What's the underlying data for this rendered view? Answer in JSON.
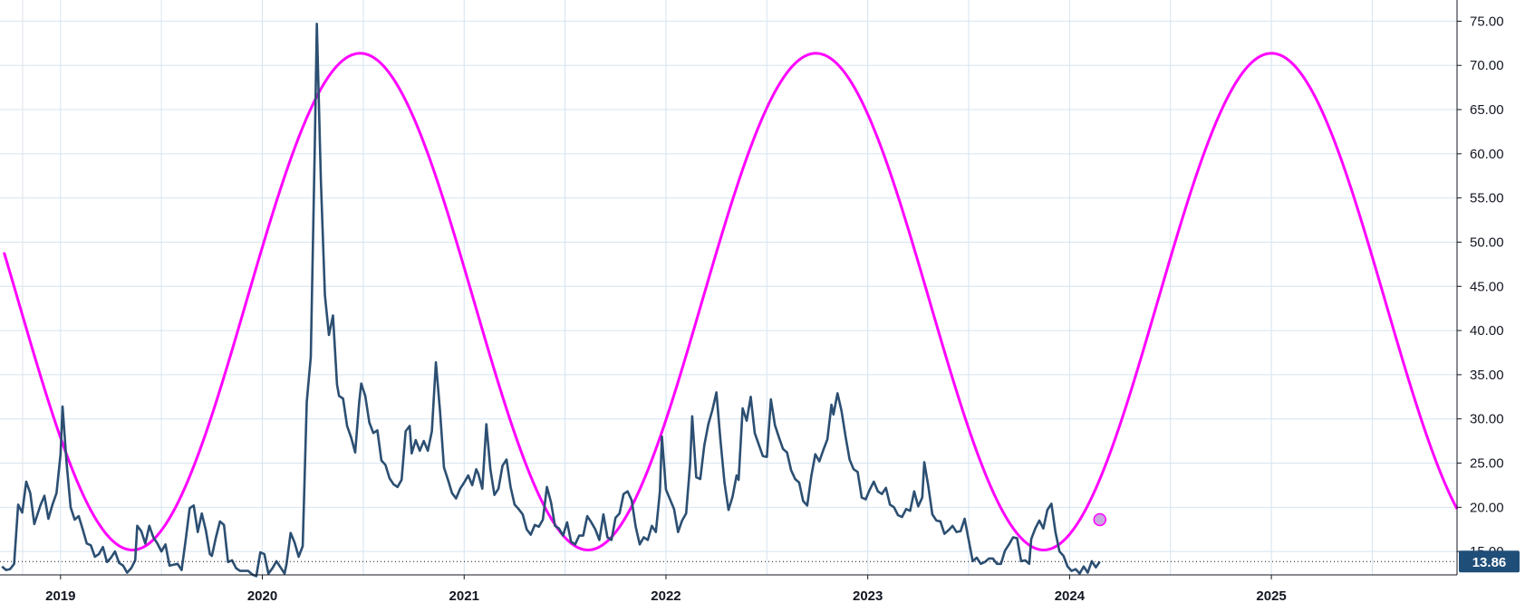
{
  "chart_data": {
    "type": "line",
    "title": "",
    "xlabel": "",
    "ylabel": "",
    "xlim": [
      2018.7,
      2025.92
    ],
    "ylim": [
      12.35,
      77.4
    ],
    "y_axis_position": "right",
    "grid": true,
    "y_ticks": [
      "15.00",
      "20.00",
      "25.00",
      "30.00",
      "35.00",
      "40.00",
      "45.00",
      "50.00",
      "55.00",
      "60.00",
      "65.00",
      "70.00",
      "75.00"
    ],
    "y_tick_values": [
      15,
      20,
      25,
      30,
      35,
      40,
      45,
      50,
      55,
      60,
      65,
      70,
      75
    ],
    "x_ticks": [
      "2019",
      "2020",
      "2021",
      "2022",
      "2023",
      "2024",
      "2025"
    ],
    "x_tick_values": [
      2019,
      2020,
      2021,
      2022,
      2023,
      2024,
      2025
    ],
    "last_value_label": "13.86",
    "last_value": 13.86,
    "colors": {
      "price_line": "#2c4f72",
      "cycle_line": "#ff00ff",
      "grid": "#d6e4f0",
      "badge": "#1f4e79",
      "marker_fill": "#c8a8e0"
    },
    "series": [
      {
        "color": "#2c4f72",
        "points": [
          [
            2018.71,
            13.3
          ],
          [
            2018.73,
            12.9
          ],
          [
            2018.75,
            13.0
          ],
          [
            2018.77,
            13.6
          ],
          [
            2018.79,
            20.3
          ],
          [
            2018.81,
            19.4
          ],
          [
            2018.83,
            22.9
          ],
          [
            2018.85,
            21.6
          ],
          [
            2018.87,
            18.1
          ],
          [
            2018.9,
            20.2
          ],
          [
            2018.92,
            21.3
          ],
          [
            2018.94,
            18.7
          ],
          [
            2018.96,
            20.3
          ],
          [
            2018.98,
            21.6
          ],
          [
            2019.0,
            26.0
          ],
          [
            2019.01,
            31.4
          ],
          [
            2019.03,
            25.0
          ],
          [
            2019.05,
            20.0
          ],
          [
            2019.07,
            18.6
          ],
          [
            2019.09,
            19.0
          ],
          [
            2019.11,
            17.5
          ],
          [
            2019.13,
            15.9
          ],
          [
            2019.15,
            15.7
          ],
          [
            2019.17,
            14.4
          ],
          [
            2019.19,
            14.7
          ],
          [
            2019.21,
            15.5
          ],
          [
            2019.23,
            13.8
          ],
          [
            2019.25,
            14.3
          ],
          [
            2019.27,
            15.0
          ],
          [
            2019.29,
            13.7
          ],
          [
            2019.31,
            13.4
          ],
          [
            2019.33,
            12.6
          ],
          [
            2019.35,
            13.1
          ],
          [
            2019.37,
            14.0
          ],
          [
            2019.38,
            17.9
          ],
          [
            2019.4,
            17.3
          ],
          [
            2019.42,
            15.9
          ],
          [
            2019.44,
            17.9
          ],
          [
            2019.46,
            16.6
          ],
          [
            2019.48,
            15.9
          ],
          [
            2019.5,
            15.0
          ],
          [
            2019.52,
            15.8
          ],
          [
            2019.54,
            13.4
          ],
          [
            2019.56,
            13.5
          ],
          [
            2019.58,
            13.6
          ],
          [
            2019.6,
            12.9
          ],
          [
            2019.62,
            16.3
          ],
          [
            2019.64,
            19.9
          ],
          [
            2019.66,
            20.2
          ],
          [
            2019.68,
            17.2
          ],
          [
            2019.7,
            19.3
          ],
          [
            2019.72,
            17.4
          ],
          [
            2019.74,
            14.7
          ],
          [
            2019.75,
            14.5
          ],
          [
            2019.77,
            16.6
          ],
          [
            2019.79,
            18.4
          ],
          [
            2019.81,
            18.0
          ],
          [
            2019.83,
            13.8
          ],
          [
            2019.85,
            14.0
          ],
          [
            2019.87,
            13.1
          ],
          [
            2019.89,
            12.8
          ],
          [
            2019.91,
            12.8
          ],
          [
            2019.93,
            12.8
          ],
          [
            2019.95,
            12.4
          ],
          [
            2019.97,
            12.2
          ],
          [
            2019.99,
            14.9
          ],
          [
            2020.01,
            14.7
          ],
          [
            2020.03,
            12.5
          ],
          [
            2020.05,
            13.1
          ],
          [
            2020.07,
            13.9
          ],
          [
            2020.09,
            13.2
          ],
          [
            2020.11,
            12.5
          ],
          [
            2020.12,
            13.6
          ],
          [
            2020.14,
            17.1
          ],
          [
            2020.16,
            16.0
          ],
          [
            2020.18,
            14.4
          ],
          [
            2020.2,
            15.6
          ],
          [
            2020.22,
            31.9
          ],
          [
            2020.24,
            37.0
          ],
          [
            2020.26,
            61.0
          ],
          [
            2020.27,
            74.7
          ],
          [
            2020.29,
            57.0
          ],
          [
            2020.31,
            44.0
          ],
          [
            2020.33,
            39.5
          ],
          [
            2020.35,
            41.7
          ],
          [
            2020.37,
            33.9
          ],
          [
            2020.38,
            32.6
          ],
          [
            2020.4,
            32.3
          ],
          [
            2020.42,
            29.2
          ],
          [
            2020.44,
            27.9
          ],
          [
            2020.46,
            26.2
          ],
          [
            2020.48,
            31.9
          ],
          [
            2020.49,
            34.0
          ],
          [
            2020.51,
            32.6
          ],
          [
            2020.53,
            29.6
          ],
          [
            2020.55,
            28.4
          ],
          [
            2020.57,
            28.7
          ],
          [
            2020.59,
            25.3
          ],
          [
            2020.61,
            24.8
          ],
          [
            2020.63,
            23.3
          ],
          [
            2020.65,
            22.6
          ],
          [
            2020.67,
            22.3
          ],
          [
            2020.69,
            23.1
          ],
          [
            2020.71,
            28.6
          ],
          [
            2020.73,
            29.2
          ],
          [
            2020.74,
            26.1
          ],
          [
            2020.76,
            27.6
          ],
          [
            2020.78,
            26.4
          ],
          [
            2020.8,
            27.5
          ],
          [
            2020.82,
            26.4
          ],
          [
            2020.84,
            28.6
          ],
          [
            2020.86,
            36.4
          ],
          [
            2020.88,
            31.0
          ],
          [
            2020.9,
            24.5
          ],
          [
            2020.92,
            23.1
          ],
          [
            2020.94,
            21.6
          ],
          [
            2020.96,
            21.0
          ],
          [
            2020.98,
            22.1
          ],
          [
            2021.0,
            22.8
          ],
          [
            2021.02,
            23.6
          ],
          [
            2021.04,
            22.5
          ],
          [
            2021.06,
            24.3
          ],
          [
            2021.07,
            23.8
          ],
          [
            2021.09,
            22.1
          ],
          [
            2021.11,
            29.4
          ],
          [
            2021.13,
            24.3
          ],
          [
            2021.15,
            21.4
          ],
          [
            2021.17,
            22.1
          ],
          [
            2021.19,
            24.7
          ],
          [
            2021.21,
            25.4
          ],
          [
            2021.23,
            22.3
          ],
          [
            2021.25,
            20.3
          ],
          [
            2021.27,
            19.8
          ],
          [
            2021.29,
            19.2
          ],
          [
            2021.31,
            17.5
          ],
          [
            2021.33,
            16.9
          ],
          [
            2021.35,
            18.0
          ],
          [
            2021.37,
            17.8
          ],
          [
            2021.39,
            18.6
          ],
          [
            2021.41,
            22.3
          ],
          [
            2021.43,
            20.6
          ],
          [
            2021.45,
            17.9
          ],
          [
            2021.47,
            17.6
          ],
          [
            2021.49,
            16.8
          ],
          [
            2021.51,
            18.3
          ],
          [
            2021.53,
            16.1
          ],
          [
            2021.55,
            15.8
          ],
          [
            2021.57,
            16.8
          ],
          [
            2021.59,
            16.8
          ],
          [
            2021.61,
            19.0
          ],
          [
            2021.63,
            18.3
          ],
          [
            2021.65,
            17.5
          ],
          [
            2021.67,
            16.3
          ],
          [
            2021.69,
            19.2
          ],
          [
            2021.71,
            16.6
          ],
          [
            2021.73,
            16.3
          ],
          [
            2021.75,
            18.8
          ],
          [
            2021.77,
            19.3
          ],
          [
            2021.79,
            21.5
          ],
          [
            2021.81,
            21.8
          ],
          [
            2021.83,
            20.8
          ],
          [
            2021.85,
            17.8
          ],
          [
            2021.87,
            15.8
          ],
          [
            2021.89,
            16.6
          ],
          [
            2021.91,
            16.3
          ],
          [
            2021.93,
            17.9
          ],
          [
            2021.95,
            17.2
          ],
          [
            2021.97,
            21.8
          ],
          [
            2021.98,
            28.0
          ],
          [
            2022.0,
            22.0
          ],
          [
            2022.02,
            20.9
          ],
          [
            2022.04,
            19.8
          ],
          [
            2022.06,
            17.2
          ],
          [
            2022.08,
            18.5
          ],
          [
            2022.1,
            19.3
          ],
          [
            2022.12,
            25.0
          ],
          [
            2022.13,
            30.3
          ],
          [
            2022.15,
            23.4
          ],
          [
            2022.17,
            23.2
          ],
          [
            2022.19,
            27.0
          ],
          [
            2022.21,
            29.4
          ],
          [
            2022.23,
            31.0
          ],
          [
            2022.25,
            33.0
          ],
          [
            2022.27,
            27.6
          ],
          [
            2022.29,
            22.8
          ],
          [
            2022.31,
            19.7
          ],
          [
            2022.33,
            21.2
          ],
          [
            2022.35,
            23.6
          ],
          [
            2022.36,
            23.1
          ],
          [
            2022.38,
            31.2
          ],
          [
            2022.4,
            29.8
          ],
          [
            2022.42,
            32.5
          ],
          [
            2022.44,
            28.4
          ],
          [
            2022.46,
            27.1
          ],
          [
            2022.48,
            25.8
          ],
          [
            2022.5,
            25.7
          ],
          [
            2022.52,
            32.2
          ],
          [
            2022.54,
            29.3
          ],
          [
            2022.56,
            27.9
          ],
          [
            2022.58,
            26.6
          ],
          [
            2022.6,
            26.2
          ],
          [
            2022.62,
            24.2
          ],
          [
            2022.64,
            23.2
          ],
          [
            2022.66,
            22.8
          ],
          [
            2022.68,
            20.7
          ],
          [
            2022.7,
            20.2
          ],
          [
            2022.72,
            23.5
          ],
          [
            2022.74,
            26.0
          ],
          [
            2022.76,
            25.2
          ],
          [
            2022.78,
            26.5
          ],
          [
            2022.8,
            27.7
          ],
          [
            2022.82,
            31.6
          ],
          [
            2022.83,
            30.5
          ],
          [
            2022.85,
            32.9
          ],
          [
            2022.87,
            30.9
          ],
          [
            2022.89,
            28.0
          ],
          [
            2022.91,
            25.4
          ],
          [
            2022.93,
            24.3
          ],
          [
            2022.95,
            24.0
          ],
          [
            2022.97,
            21.1
          ],
          [
            2022.99,
            20.9
          ],
          [
            2023.01,
            22.0
          ],
          [
            2023.03,
            22.9
          ],
          [
            2023.05,
            21.8
          ],
          [
            2023.07,
            21.5
          ],
          [
            2023.09,
            22.2
          ],
          [
            2023.11,
            20.3
          ],
          [
            2023.13,
            20.0
          ],
          [
            2023.15,
            19.1
          ],
          [
            2023.17,
            18.9
          ],
          [
            2023.19,
            19.8
          ],
          [
            2023.21,
            19.6
          ],
          [
            2023.23,
            21.8
          ],
          [
            2023.25,
            20.1
          ],
          [
            2023.27,
            21.1
          ],
          [
            2023.28,
            25.1
          ],
          [
            2023.3,
            22.4
          ],
          [
            2023.32,
            19.2
          ],
          [
            2023.34,
            18.5
          ],
          [
            2023.36,
            18.4
          ],
          [
            2023.38,
            17.0
          ],
          [
            2023.4,
            17.4
          ],
          [
            2023.42,
            17.9
          ],
          [
            2023.44,
            17.2
          ],
          [
            2023.46,
            17.3
          ],
          [
            2023.48,
            18.7
          ],
          [
            2023.5,
            16.3
          ],
          [
            2023.52,
            13.9
          ],
          [
            2023.54,
            14.3
          ],
          [
            2023.56,
            13.6
          ],
          [
            2023.58,
            13.8
          ],
          [
            2023.6,
            14.2
          ],
          [
            2023.62,
            14.2
          ],
          [
            2023.64,
            13.6
          ],
          [
            2023.66,
            13.6
          ],
          [
            2023.68,
            15.1
          ],
          [
            2023.7,
            15.8
          ],
          [
            2023.72,
            16.6
          ],
          [
            2023.74,
            16.5
          ],
          [
            2023.76,
            13.9
          ],
          [
            2023.78,
            14.0
          ],
          [
            2023.8,
            13.6
          ],
          [
            2023.81,
            16.4
          ],
          [
            2023.83,
            17.6
          ],
          [
            2023.85,
            18.5
          ],
          [
            2023.87,
            17.6
          ],
          [
            2023.89,
            19.7
          ],
          [
            2023.91,
            20.4
          ],
          [
            2023.93,
            17.2
          ],
          [
            2023.95,
            15.0
          ],
          [
            2023.97,
            14.5
          ],
          [
            2023.99,
            13.3
          ],
          [
            2024.01,
            12.8
          ],
          [
            2024.03,
            13.0
          ],
          [
            2024.05,
            12.5
          ],
          [
            2024.07,
            13.3
          ],
          [
            2024.09,
            12.6
          ],
          [
            2024.11,
            13.9
          ],
          [
            2024.13,
            13.2
          ],
          [
            2024.15,
            13.86
          ]
        ]
      },
      {
        "color": "#ff00ff",
        "function": {
          "kind": "sine",
          "mean": 43.27,
          "amplitude": 28.1,
          "period_years": 2.2578,
          "peak_at": 2020.485
        }
      }
    ],
    "marker": {
      "x": 2024.15,
      "y": 18.6,
      "on": "cycle"
    }
  }
}
